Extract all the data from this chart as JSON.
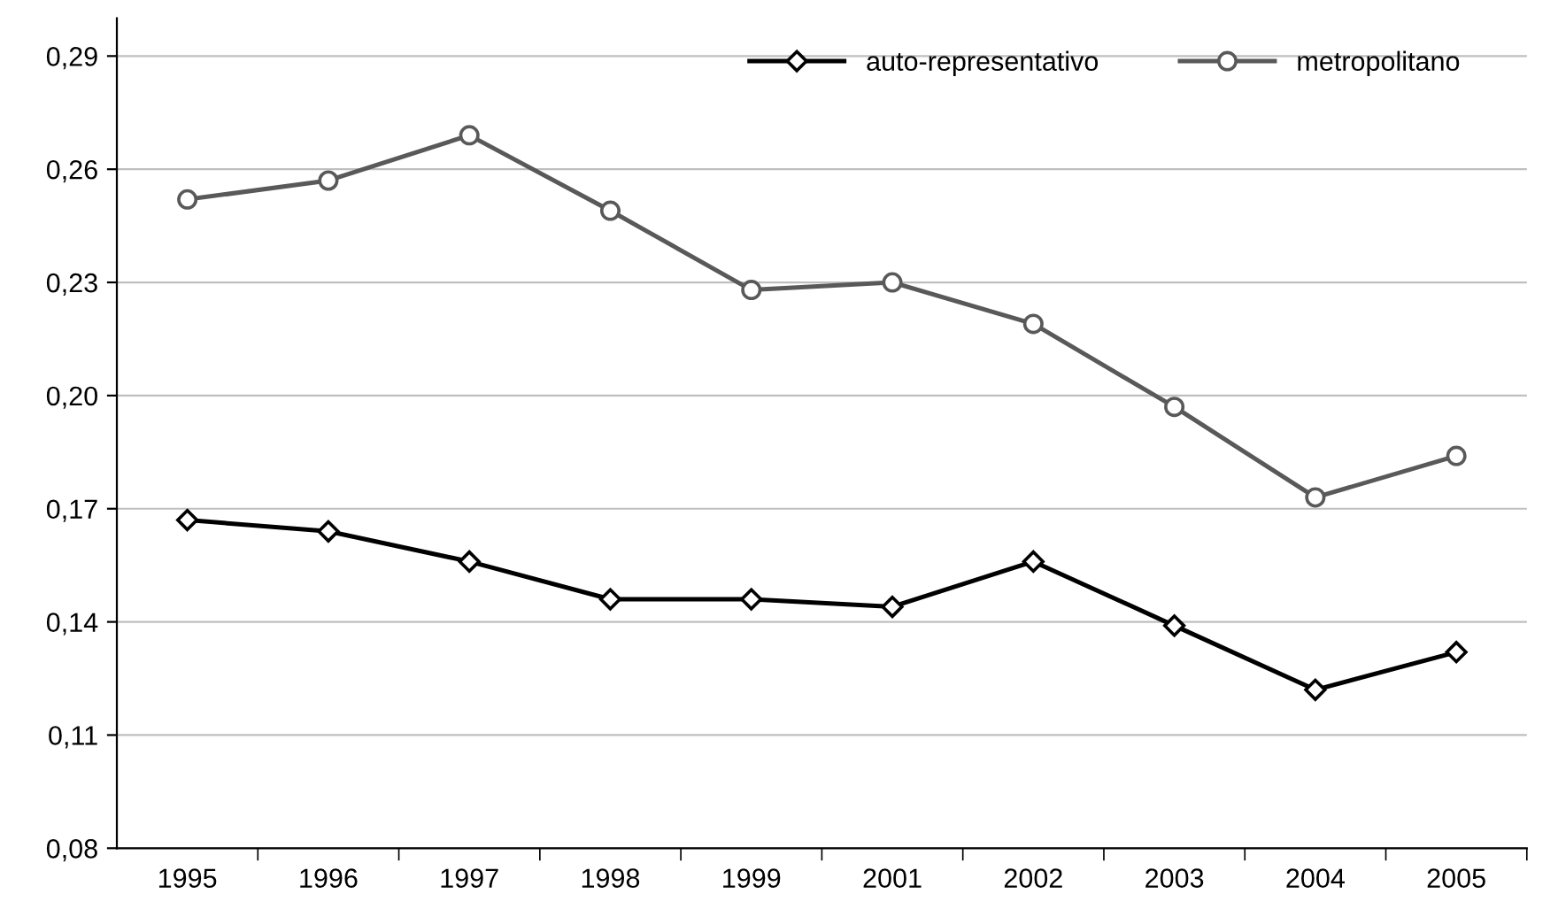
{
  "chart_data": {
    "type": "line",
    "categories": [
      "1995",
      "1996",
      "1997",
      "1998",
      "1999",
      "2001",
      "2002",
      "2003",
      "2004",
      "2005"
    ],
    "series": [
      {
        "name": "auto-representativo",
        "color": "#000000",
        "marker": "diamond",
        "values": [
          0.167,
          0.164,
          0.156,
          0.146,
          0.146,
          0.144,
          0.156,
          0.139,
          0.122,
          0.132
        ]
      },
      {
        "name": "metropolitano",
        "color": "#595959",
        "marker": "circle",
        "values": [
          0.252,
          0.257,
          0.269,
          0.249,
          0.228,
          0.23,
          0.219,
          0.197,
          0.173,
          0.184
        ]
      }
    ],
    "ylim": [
      0.08,
      0.3
    ],
    "yticks": [
      {
        "value": 0.08,
        "label": "0,08"
      },
      {
        "value": 0.11,
        "label": "0,11"
      },
      {
        "value": 0.14,
        "label": "0,14"
      },
      {
        "value": 0.17,
        "label": "0,17"
      },
      {
        "value": 0.2,
        "label": "0,20"
      },
      {
        "value": 0.23,
        "label": "0,23"
      },
      {
        "value": 0.26,
        "label": "0,26"
      },
      {
        "value": 0.29,
        "label": "0,29"
      }
    ],
    "grid": "y",
    "legend": "top right",
    "line_style": "solid"
  }
}
